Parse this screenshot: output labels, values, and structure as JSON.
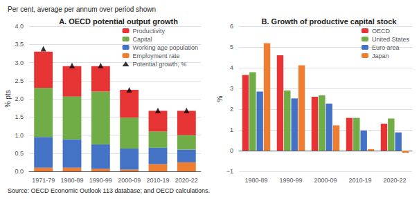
{
  "title": "Per cent, average per annum over period shown",
  "annotations": [
    "Source: OECD Economic Outlook 113 database; and OECD calculations."
  ],
  "chart_data": [
    {
      "type": "bar",
      "title": "A. OECD potential output growth",
      "ylabel": "% pts",
      "categories": [
        "1971-79",
        "1980-89",
        "1990-99",
        "2000-09",
        "2010-19",
        "2020-22"
      ],
      "stacked": true,
      "series": [
        {
          "name": "Employment rate",
          "color": "#ed7d31",
          "values": [
            0.1,
            0.1,
            0.07,
            0.05,
            0.2,
            0.25
          ]
        },
        {
          "name": "Working age population",
          "color": "#4472c4",
          "values": [
            0.85,
            0.78,
            0.68,
            0.58,
            0.45,
            0.35
          ]
        },
        {
          "name": "Capital",
          "color": "#70ad47",
          "values": [
            1.35,
            1.18,
            1.45,
            0.85,
            0.45,
            0.4
          ]
        },
        {
          "name": "Productivity",
          "color": "#e63333",
          "values": [
            1.0,
            0.84,
            0.7,
            0.77,
            0.57,
            0.67
          ]
        },
        {
          "name": "Potential growth, %",
          "type": "scatter",
          "marker": "triangle",
          "color": "#000000",
          "values": [
            3.38,
            2.92,
            2.92,
            2.25,
            1.68,
            1.68
          ]
        }
      ],
      "ylim": [
        0.0,
        4.0
      ],
      "yticks": [
        {
          "value": 0,
          "label": "0.0"
        },
        0.5,
        {
          "value": 1,
          "label": "1.0"
        },
        1.5,
        {
          "value": 2,
          "label": "2.0"
        },
        2.5,
        {
          "value": 3,
          "label": "3.0"
        },
        3.5,
        {
          "value": 4,
          "label": "4.0"
        }
      ],
      "grid": true,
      "legend": "upper right"
    },
    {
      "type": "bar",
      "title": "B. Growth of productive capital stock",
      "ylabel": "%",
      "categories": [
        "1980-89",
        "1990-99",
        "2000-09",
        "2010-19",
        "2020-22"
      ],
      "series": [
        {
          "name": "OECD",
          "color": "#e63333",
          "values": [
            3.65,
            4.6,
            2.6,
            1.58,
            1.3
          ]
        },
        {
          "name": "United States",
          "color": "#70ad47",
          "values": [
            3.78,
            2.9,
            2.67,
            1.58,
            1.55
          ]
        },
        {
          "name": "Euro area",
          "color": "#4472c4",
          "values": [
            2.85,
            2.52,
            2.27,
            0.97,
            0.88
          ]
        },
        {
          "name": "Japan",
          "color": "#ed7d31",
          "values": [
            5.18,
            4.12,
            1.22,
            0.07,
            -0.1
          ]
        }
      ],
      "ylim": [
        -1.0,
        6.0
      ],
      "yticks": [
        {
          "value": -1,
          "label": "−1"
        },
        0,
        1,
        2,
        3,
        4,
        5,
        6
      ],
      "grid": true,
      "legend": "upper right"
    }
  ]
}
